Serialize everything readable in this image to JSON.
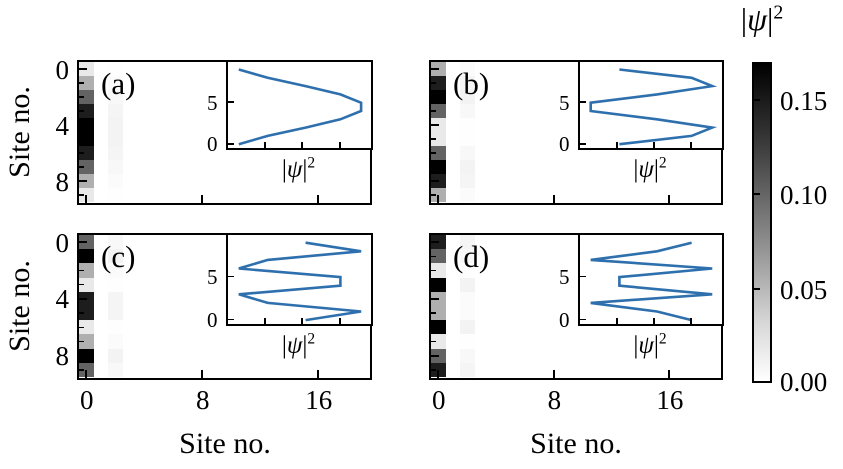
{
  "psi_label": {
    "open": "|",
    "psi": "ψ",
    "close": "|",
    "sup": "2"
  },
  "chart_data": {
    "type": "heatmap",
    "title": "",
    "description": "Four panels (a)-(d) showing |ψ|² of the four lowest eigenstates on a 20x10-site lattice; density is concentrated on site column 0 (with a very faint trace on column 2). Each panel has an inset line plot of the column-0 profile |ψ|² vs site no.",
    "xlabel": "Site no.",
    "ylabel": "Site no.",
    "x_range": [
      0,
      19
    ],
    "y_range": [
      0,
      9
    ],
    "x_ticks": [
      0,
      8,
      16
    ],
    "y_ticks": [
      0,
      4,
      8
    ],
    "y_minor_ticks": [
      1,
      2,
      3,
      5,
      6,
      7,
      9
    ],
    "grid": false,
    "colorbar": {
      "label": "|ψ|²",
      "vmin": 0.0,
      "vmax": 0.17,
      "ticks": [
        0.15,
        0.1,
        0.05,
        0.0
      ]
    },
    "inset": {
      "type": "line",
      "xlabel": "|ψ|²",
      "x_ticks": [
        0.05,
        0.1,
        0.15
      ],
      "x_range": [
        0,
        0.19
      ],
      "y_ticks": [
        5,
        0
      ],
      "y_range": [
        -0.4,
        9.9
      ],
      "line_color": "#2e6fad"
    },
    "faint_column_index": 2,
    "faint_column_scale": 0.045,
    "panels": [
      {
        "label": "(a)",
        "column0_profile": [
          0.0144,
          0.0531,
          0.1038,
          0.1504,
          0.1781,
          0.1781,
          0.1504,
          0.1038,
          0.0531,
          0.0144
        ]
      },
      {
        "label": "(b)",
        "column0_profile": [
          0.0531,
          0.1504,
          0.1781,
          0.1038,
          0.0144,
          0.0144,
          0.1038,
          0.1781,
          0.1504,
          0.0531
        ]
      },
      {
        "label": "(c)",
        "column0_profile": [
          0.1038,
          0.1781,
          0.0531,
          0.0144,
          0.1504,
          0.1504,
          0.0144,
          0.0531,
          0.1781,
          0.1038
        ]
      },
      {
        "label": "(d)",
        "column0_profile": [
          0.1504,
          0.1038,
          0.0144,
          0.1781,
          0.0531,
          0.0531,
          0.1781,
          0.0144,
          0.1038,
          0.1504
        ]
      }
    ]
  }
}
